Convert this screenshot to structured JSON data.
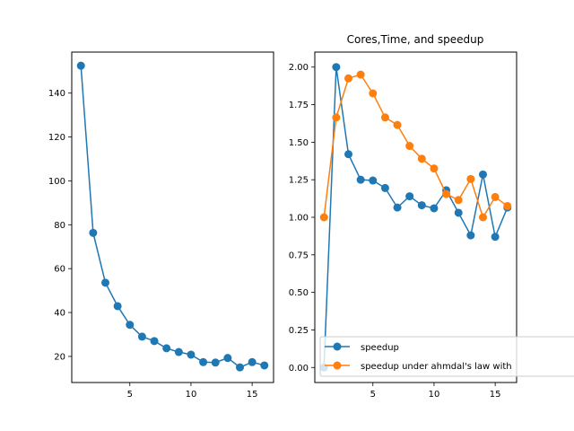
{
  "chart_data": [
    {
      "type": "line",
      "title": "",
      "xlabel": "",
      "ylabel": "",
      "xlim": [
        0.25,
        16.75
      ],
      "ylim": [
        8.1,
        158.7
      ],
      "xticks": [
        5,
        10,
        15
      ],
      "yticks": [
        20,
        40,
        60,
        80,
        100,
        120,
        140
      ],
      "grid": false,
      "series": [
        {
          "color": "#1f77b4",
          "marker": "circle",
          "x": [
            1,
            2,
            3,
            4,
            5,
            6,
            7,
            8,
            9,
            10,
            11,
            12,
            13,
            14,
            15,
            16
          ],
          "y": [
            152.5,
            76.3,
            53.6,
            42.9,
            34.4,
            29.0,
            27.0,
            23.7,
            22.0,
            20.8,
            17.4,
            17.2,
            19.3,
            15.0,
            17.4,
            15.9
          ]
        }
      ]
    },
    {
      "type": "line",
      "title": "Cores,Time, and speedup",
      "xlabel": "",
      "ylabel": "",
      "xlim": [
        0.25,
        16.75
      ],
      "ylim": [
        -0.1,
        2.1
      ],
      "xticks": [
        5,
        10,
        15
      ],
      "yticks": [
        "0.00",
        "0.25",
        "0.50",
        "0.75",
        "1.00",
        "1.25",
        "1.50",
        "1.75",
        "2.00"
      ],
      "grid": false,
      "legend": "lower-right",
      "series": [
        {
          "name": "speedup",
          "color": "#1f77b4",
          "marker": "circle",
          "x": [
            1,
            2,
            3,
            4,
            5,
            6,
            7,
            8,
            9,
            10,
            11,
            12,
            13,
            14,
            15,
            16
          ],
          "y": [
            0.0,
            2.0,
            1.42,
            1.25,
            1.245,
            1.195,
            1.065,
            1.14,
            1.08,
            1.06,
            1.18,
            1.03,
            0.88,
            1.285,
            0.87,
            1.065
          ]
        },
        {
          "name": "speedup under ahmdal's law with",
          "color": "#ff7f0e",
          "marker": "circle",
          "x": [
            1,
            2,
            3,
            4,
            5,
            6,
            7,
            8,
            9,
            10,
            11,
            12,
            13,
            14,
            15,
            16
          ],
          "y": [
            1.0,
            1.665,
            1.925,
            1.95,
            1.825,
            1.665,
            1.615,
            1.475,
            1.39,
            1.325,
            1.155,
            1.115,
            1.255,
            1.0,
            1.135,
            1.075
          ]
        }
      ]
    }
  ]
}
